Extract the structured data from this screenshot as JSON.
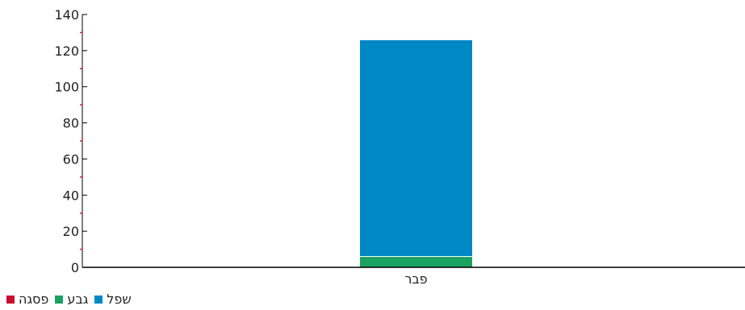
{
  "chart_data": {
    "type": "bar",
    "stacked": true,
    "categories": [
      "פבר"
    ],
    "series": [
      {
        "name": "פסגה",
        "values": [
          0
        ],
        "color": "#c8102e"
      },
      {
        "name": "גבע",
        "values": [
          6
        ],
        "color": "#1aa260"
      },
      {
        "name": "שפל",
        "values": [
          120
        ],
        "color": "#0088c4"
      }
    ],
    "y_ticks": [
      "0",
      "20",
      "40",
      "60",
      "80",
      "100",
      "120",
      "140"
    ],
    "ylim": [
      0,
      140
    ],
    "grid": false,
    "legend_position": "bottom-left"
  }
}
